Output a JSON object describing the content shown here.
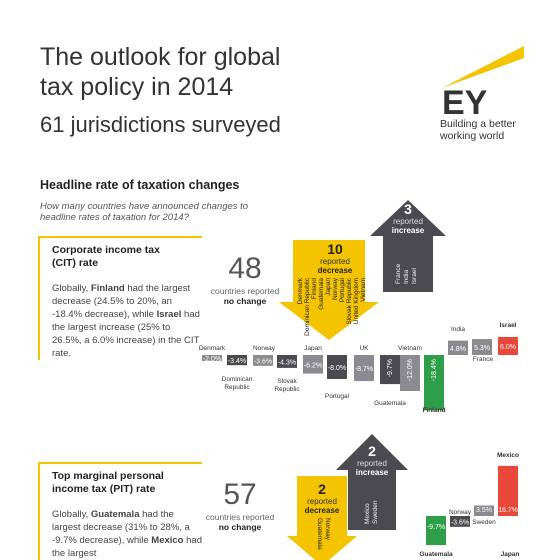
{
  "header": {
    "title_line1": "The outlook for global",
    "title_line2": "tax policy in 2014",
    "subtitle": "61 jurisdictions surveyed",
    "logo_text": "EY",
    "tagline_line1": "Building a better",
    "tagline_line2": "working world"
  },
  "section": {
    "title": "Headline rate of taxation changes",
    "question_line1": "How many countries have announced changes to",
    "question_line2": "headline rates of taxation for 2014?"
  },
  "cit": {
    "title_line1": "Corporate income tax",
    "title_line2": "(CIT) rate",
    "text": {
      "p1": "Globally, ",
      "b1": "Finland",
      "p2": " had the largest decrease (24.5% to 20%, an -18.4% decrease), while ",
      "b2": "Israel",
      "p3": " had the largest increase (25% to 26.5%, a 6.0% increase) in the CIT rate."
    },
    "no_change_count": "48",
    "no_change_line1": "countries reported",
    "no_change_line2": "no change",
    "decrease_count": "10",
    "decrease_line1": "reported",
    "decrease_line2": "decrease",
    "decrease_countries": [
      "Denmark",
      "Dominican Republic",
      "Finland",
      "Guatemala",
      "Japan",
      "Norway",
      "Portugal",
      "Slovak Republic",
      "United Kingdom",
      "Vietnam"
    ],
    "increase_count": "3",
    "increase_line1": "reported",
    "increase_line2": "increase",
    "increase_countries": [
      "France",
      "India",
      "Israel"
    ]
  },
  "pit": {
    "title_line1": "Top marginal personal",
    "title_line2": "income tax (PIT) rate",
    "text": {
      "p1": "Globally, ",
      "b1": "Guatemala",
      "p2": " had the largest decrease (31% to 28%, a -9.7% decrease), while ",
      "b2": "Mexico",
      "p3": " had the largest"
    },
    "no_change_count": "57",
    "no_change_line1": "countries reported",
    "no_change_line2": "no change",
    "decrease_count": "2",
    "decrease_line1": "reported",
    "decrease_line2": "decrease",
    "decrease_countries": [
      "Guatemala",
      "Norway"
    ],
    "increase_count": "2",
    "increase_line1": "reported",
    "increase_line2": "increase",
    "increase_countries": [
      "Mexico",
      "Sweden"
    ]
  },
  "colors": {
    "yellow": "#f5c400",
    "dark": "#4a4a50",
    "gray": "#8a8a90",
    "green": "#2e9e48",
    "red": "#e8473a"
  },
  "chart_data": [
    {
      "type": "bar",
      "categories": [
        "Denmark",
        "Dominican Republic",
        "Norway",
        "Slovak Republic",
        "Japan",
        "Portugal",
        "UK",
        "Guatemala",
        "Vietnam",
        "Finland",
        "India",
        "France",
        "Israel"
      ],
      "values": [
        -2.0,
        -3.4,
        -3.6,
        -4.3,
        -6.2,
        -8.0,
        -8.7,
        -9.7,
        -12.0,
        -18.4,
        4.8,
        5.3,
        6.0
      ],
      "value_labels": [
        "-2.0%",
        "-3.4%",
        "-3.6%",
        "-4.3%",
        "-6.2%",
        "-8.0%",
        "-8.7%",
        "-9.7%",
        "-12.0%",
        "-18.4%",
        "4.8%",
        "5.3%",
        "6.0%"
      ],
      "xlabel": "",
      "ylabel": ""
    },
    {
      "type": "bar",
      "categories": [
        "Guatemala",
        "Norway",
        "Sweden",
        "Mexico"
      ],
      "values": [
        -9.7,
        -3.6,
        3.5,
        16.7
      ],
      "value_labels": [
        "-9.7%",
        "-3.6%",
        "3.5%",
        "16.7%"
      ],
      "extra_labels": [
        "Japan"
      ],
      "xlabel": "",
      "ylabel": ""
    }
  ]
}
